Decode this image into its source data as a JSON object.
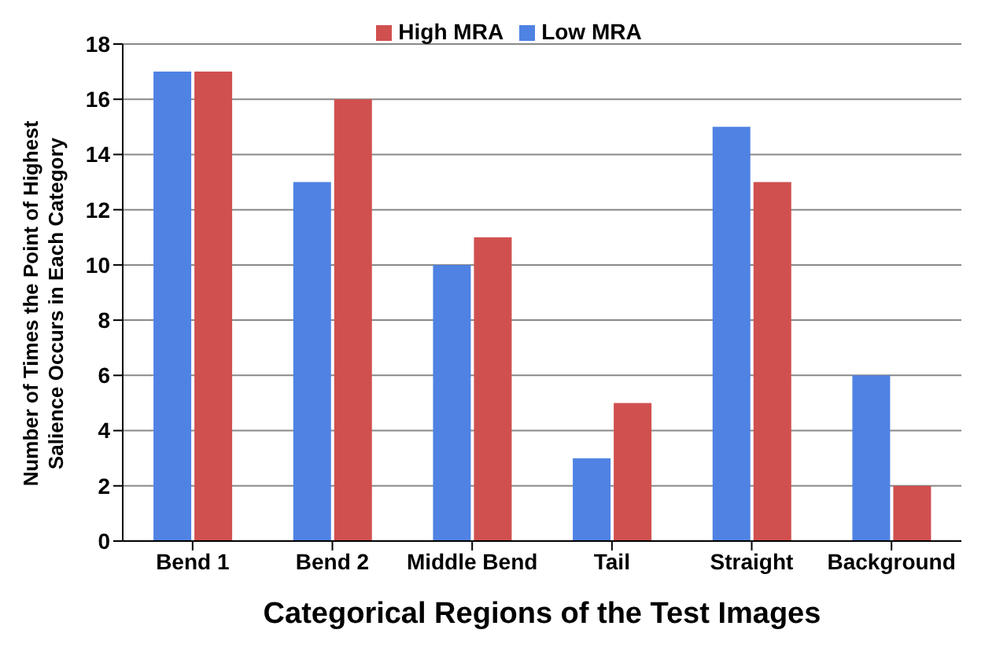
{
  "chart_data": {
    "type": "bar",
    "xlabel": "Categorical Regions of the Test Images",
    "ylabel": "Number of Times the Point of Highest\nSalience Occurs in Each Category",
    "categories": [
      "Bend 1",
      "Bend 2",
      "Middle Bend",
      "Tail",
      "Straight",
      "Background"
    ],
    "series": [
      {
        "name": "Low MRA",
        "color": "#4f82e3",
        "values": [
          17,
          13,
          10,
          3,
          15,
          6
        ]
      },
      {
        "name": "High MRA",
        "color": "#d0504f",
        "values": [
          17,
          16,
          11,
          5,
          13,
          2
        ]
      }
    ],
    "ylim": [
      0,
      18
    ],
    "yticks": [
      0,
      2,
      4,
      6,
      8,
      10,
      12,
      14,
      16,
      18
    ],
    "grid": "y",
    "legend": "top"
  }
}
